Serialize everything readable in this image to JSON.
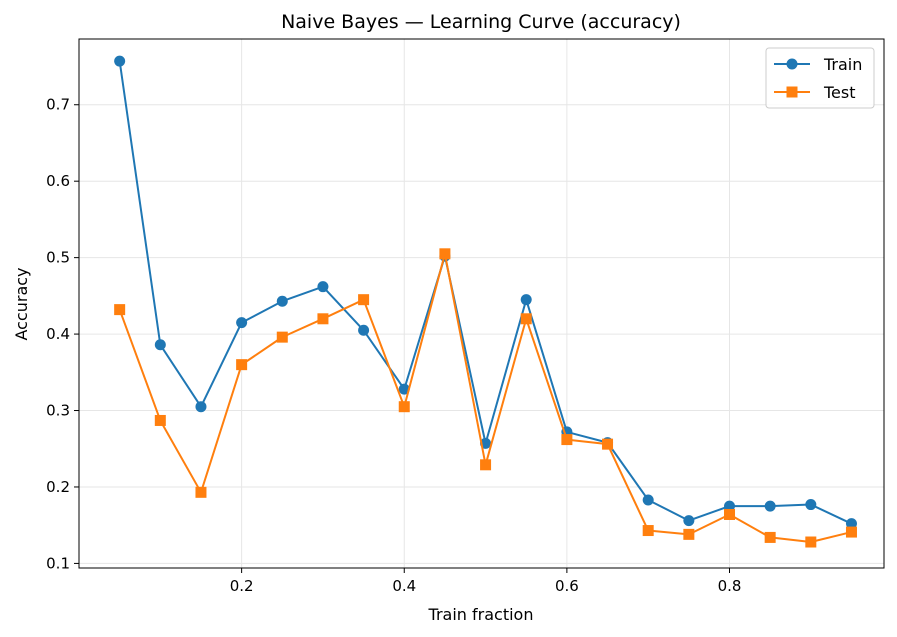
{
  "chart_data": {
    "type": "line",
    "title": "Naive Bayes — Learning Curve (accuracy)",
    "xlabel": "Train fraction",
    "ylabel": "Accuracy",
    "xlim": [
      0.0,
      0.99
    ],
    "ylim": [
      0.094,
      0.786
    ],
    "xticks": [
      0.2,
      0.4,
      0.6,
      0.8
    ],
    "xtick_labels": [
      "0.2",
      "0.4",
      "0.6",
      "0.8"
    ],
    "yticks": [
      0.1,
      0.2,
      0.3,
      0.4,
      0.5,
      0.6,
      0.7
    ],
    "ytick_labels": [
      "0.1",
      "0.2",
      "0.3",
      "0.4",
      "0.5",
      "0.6",
      "0.7"
    ],
    "grid": true,
    "legend_position": "top-right",
    "x": [
      0.05,
      0.1,
      0.15,
      0.2,
      0.25,
      0.3,
      0.35,
      0.4,
      0.45,
      0.5,
      0.55,
      0.6,
      0.65,
      0.7,
      0.75,
      0.8,
      0.85,
      0.9,
      0.95
    ],
    "series": [
      {
        "name": "Train",
        "color": "#1f77b4",
        "marker": "circle",
        "values": [
          0.757,
          0.386,
          0.305,
          0.415,
          0.443,
          0.462,
          0.405,
          0.328,
          0.502,
          0.257,
          0.445,
          0.272,
          0.258,
          0.183,
          0.156,
          0.175,
          0.175,
          0.177,
          0.152
        ]
      },
      {
        "name": "Test",
        "color": "#ff7f0e",
        "marker": "square",
        "values": [
          0.432,
          0.287,
          0.193,
          0.36,
          0.396,
          0.42,
          0.445,
          0.305,
          0.505,
          0.229,
          0.42,
          0.262,
          0.256,
          0.143,
          0.138,
          0.164,
          0.134,
          0.128,
          0.141
        ]
      }
    ]
  }
}
